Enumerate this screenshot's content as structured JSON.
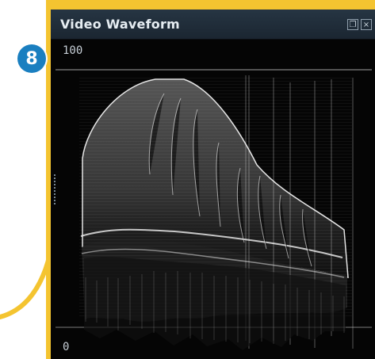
{
  "callout": {
    "number": "8",
    "accent_color": "#f4c430",
    "badge_color": "#1a7fc0"
  },
  "window": {
    "title": "Video Waveform",
    "buttons": [
      "restore-icon",
      "close-icon"
    ]
  },
  "scope": {
    "top_value": "100",
    "bottom_value": "0"
  }
}
